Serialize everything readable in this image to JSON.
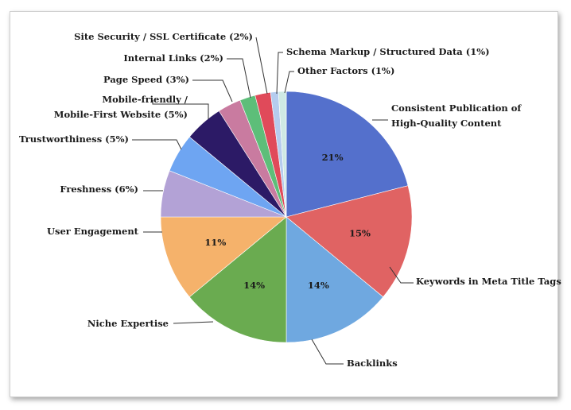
{
  "chart_data": {
    "type": "pie",
    "title": "",
    "start_angle_deg": 0,
    "direction": "clockwise",
    "slices": [
      {
        "label_lines": [
          "Consistent Publication of",
          "High-Quality Content"
        ],
        "value": 21,
        "pct_label": "21%",
        "color": "#5470CC"
      },
      {
        "label_lines": [
          "Keywords in Meta Title Tags"
        ],
        "value": 15,
        "pct_label": "15%",
        "color": "#E06363"
      },
      {
        "label_lines": [
          "Backlinks"
        ],
        "value": 14,
        "pct_label": "14%",
        "color": "#6FA8E0"
      },
      {
        "label_lines": [
          "Niche Expertise"
        ],
        "value": 14,
        "pct_label": "14%",
        "color": "#6AAB50"
      },
      {
        "label_lines": [
          "User Engagement"
        ],
        "value": 11,
        "pct_label": "11%",
        "color": "#F5B26B"
      },
      {
        "label_lines": [
          "Freshness (6%)"
        ],
        "value": 6,
        "pct_label": "",
        "color": "#B3A2D6"
      },
      {
        "label_lines": [
          "Trustworthiness (5%)"
        ],
        "value": 5,
        "pct_label": "",
        "color": "#6EA5F2"
      },
      {
        "label_lines": [
          "Mobile-friendly /",
          "Mobile-First Website (5%)"
        ],
        "value": 5,
        "pct_label": "",
        "color": "#2C1A66"
      },
      {
        "label_lines": [
          "Page Speed (3%)"
        ],
        "value": 3,
        "pct_label": "",
        "color": "#C97BA0"
      },
      {
        "label_lines": [
          "Internal Links (2%)"
        ],
        "value": 2,
        "pct_label": "",
        "color": "#5DBE79"
      },
      {
        "label_lines": [
          "Site Security / SSL Certificate (2%)"
        ],
        "value": 2,
        "pct_label": "",
        "color": "#E04A5A"
      },
      {
        "label_lines": [
          "Schema Markup / Structured Data (1%)"
        ],
        "value": 1,
        "pct_label": "",
        "color": "#B5CCEE"
      },
      {
        "label_lines": [
          "Other Factors (1%)"
        ],
        "value": 1,
        "pct_label": "",
        "color": "#CFE9E4"
      }
    ]
  }
}
